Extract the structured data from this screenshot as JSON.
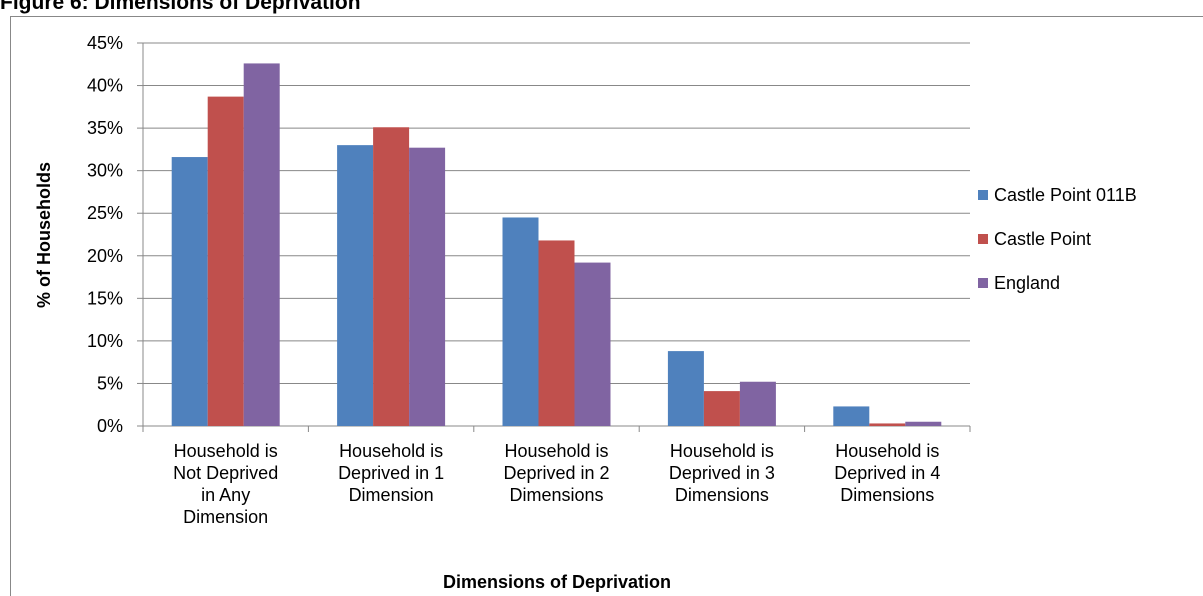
{
  "chart_data": {
    "type": "bar",
    "title": "Figure 6: Dimensions of Deprivation",
    "x_label": "Dimensions of Deprivation",
    "y_label": "% of Households",
    "categories": [
      "Household is\nNot Deprived\nin Any\nDimension",
      "Household is\nDeprived in 1\nDimension",
      "Household is\nDeprived in 2\nDimensions",
      "Household is\nDeprived in 3\nDimensions",
      "Household is\nDeprived in 4\nDimensions"
    ],
    "series": [
      {
        "name": "Castle Point 011B",
        "color": "#4f81bd",
        "values": [
          31.6,
          33.0,
          24.5,
          8.8,
          2.3
        ]
      },
      {
        "name": "Castle Point",
        "color": "#c0504d",
        "values": [
          38.7,
          35.1,
          21.8,
          4.1,
          0.3
        ]
      },
      {
        "name": "England",
        "color": "#8064a2",
        "values": [
          42.6,
          32.7,
          19.2,
          5.2,
          0.5
        ]
      }
    ],
    "ylim": [
      0,
      45
    ],
    "yticks": [
      {
        "value": 0,
        "label": "0%"
      },
      {
        "value": 5,
        "label": "5%"
      },
      {
        "value": 10,
        "label": "10%"
      },
      {
        "value": 15,
        "label": "15%"
      },
      {
        "value": 20,
        "label": "20%"
      },
      {
        "value": 25,
        "label": "25%"
      },
      {
        "value": 30,
        "label": "30%"
      },
      {
        "value": 35,
        "label": "35%"
      },
      {
        "value": 40,
        "label": "40%"
      },
      {
        "value": 45,
        "label": "45%"
      }
    ],
    "grid": true,
    "legend": "right"
  }
}
